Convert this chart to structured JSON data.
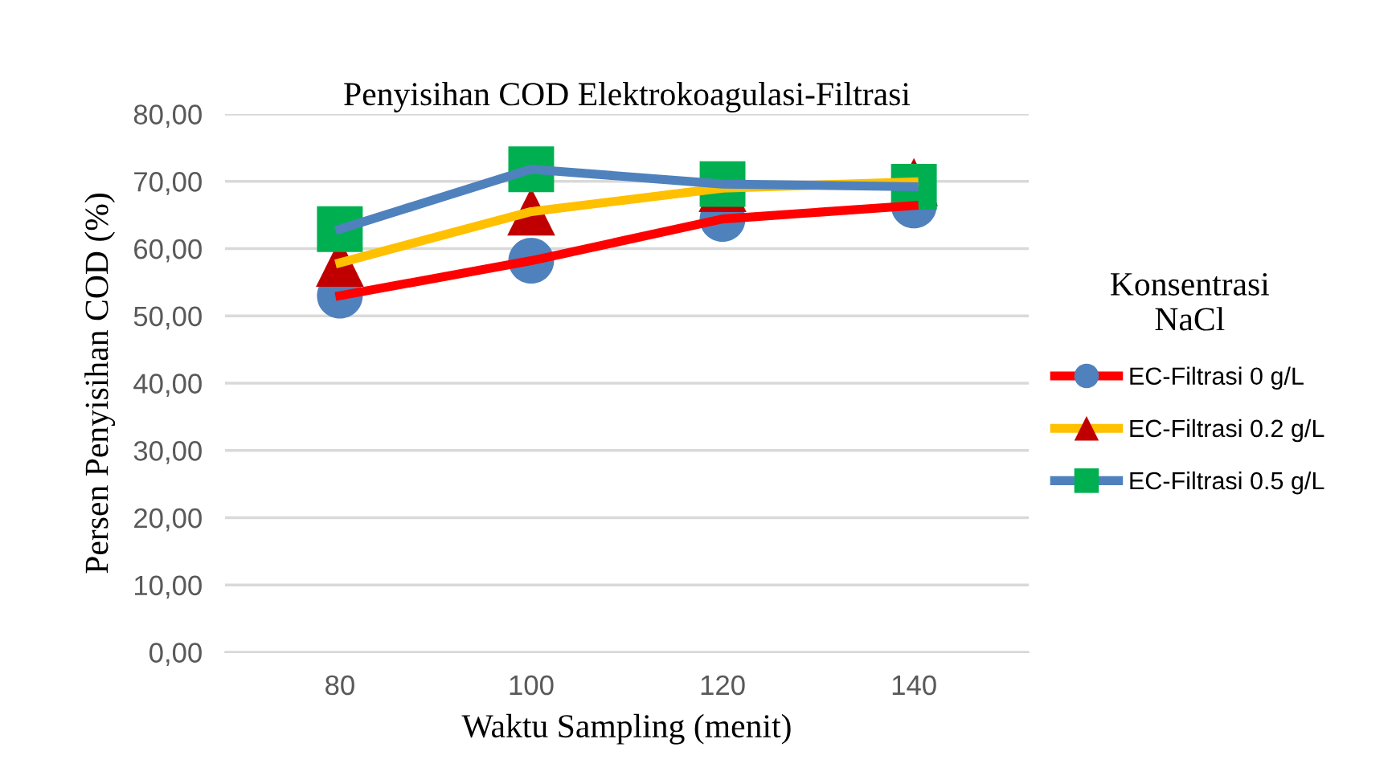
{
  "chart_data": {
    "type": "line",
    "title": "Penyisihan COD Elektrokoagulasi-Filtrasi",
    "xlabel": "Waktu Sampling (menit)",
    "ylabel": "Persen Penyisihan COD (%)",
    "legend_title": "Konsentrasi\nNaCl",
    "categories": [
      "80",
      "100",
      "120",
      "140"
    ],
    "series": [
      {
        "name": "EC-Filtrasi 0 g/L",
        "color": "#ff0000",
        "marker": "circle",
        "colors": [
          "#4f81bd",
          "#4f81bd",
          "#4f81bd",
          "#4f81bd"
        ],
        "values": [
          53.0,
          58.2,
          64.4,
          66.4
        ]
      },
      {
        "name": "EC-Filtrasi 0.2 g/L",
        "color": "#ffc000",
        "marker": "triangle",
        "colors": [
          "#c00000",
          "#c00000",
          "#c00000",
          "#c00000"
        ],
        "values": [
          57.9,
          65.5,
          69.0,
          69.9
        ]
      },
      {
        "name": "EC-Filtrasi 0.5 g/L",
        "color": "#4f81bd",
        "marker": "square",
        "colors": [
          "#00b050",
          "#00b050",
          "#00b050",
          "#00b050"
        ],
        "values": [
          62.9,
          71.8,
          69.6,
          69.2
        ]
      }
    ],
    "ylim": [
      0,
      80
    ],
    "yticks": [
      {
        "value": 0,
        "label": "0,00"
      },
      {
        "value": 10,
        "label": "10,00"
      },
      {
        "value": 20,
        "label": "20,00"
      },
      {
        "value": 30,
        "label": "30,00"
      },
      {
        "value": 40,
        "label": "40,00"
      },
      {
        "value": 50,
        "label": "50,00"
      },
      {
        "value": 60,
        "label": "60,00"
      },
      {
        "value": 70,
        "label": "70,00"
      },
      {
        "value": 80,
        "label": "80,00"
      }
    ],
    "grid": "y",
    "legend": "right",
    "line_style": "solid"
  }
}
